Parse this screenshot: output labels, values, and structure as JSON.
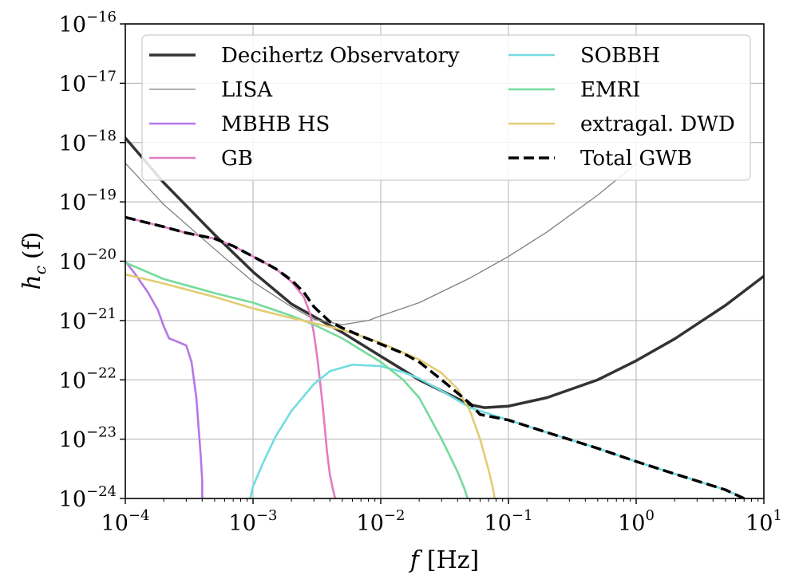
{
  "chart_data": {
    "type": "line",
    "title": "",
    "xlabel": {
      "var": "f",
      "unit": "[Hz]"
    },
    "ylabel": {
      "var": "h",
      "sub": "c",
      "arg": "(f)"
    },
    "xscale": "log",
    "yscale": "log",
    "xlim": [
      0.0001,
      10
    ],
    "ylim": [
      1e-24,
      1e-16
    ],
    "x_ticks": [
      {
        "base": "10",
        "exp": "−4",
        "value": 0.0001
      },
      {
        "base": "10",
        "exp": "−3",
        "value": 0.001
      },
      {
        "base": "10",
        "exp": "−2",
        "value": 0.01
      },
      {
        "base": "10",
        "exp": "−1",
        "value": 0.1
      },
      {
        "base": "10",
        "exp": "0",
        "value": 1
      },
      {
        "base": "10",
        "exp": "1",
        "value": 10
      }
    ],
    "y_ticks": [
      {
        "base": "10",
        "exp": "−24",
        "value": 1e-24
      },
      {
        "base": "10",
        "exp": "−23",
        "value": 1e-23
      },
      {
        "base": "10",
        "exp": "−22",
        "value": 1e-22
      },
      {
        "base": "10",
        "exp": "−21",
        "value": 1e-21
      },
      {
        "base": "10",
        "exp": "−20",
        "value": 1e-20
      },
      {
        "base": "10",
        "exp": "−19",
        "value": 1e-19
      },
      {
        "base": "10",
        "exp": "−18",
        "value": 1e-18
      },
      {
        "base": "10",
        "exp": "−17",
        "value": 1e-17
      },
      {
        "base": "10",
        "exp": "−16",
        "value": 1e-16
      }
    ],
    "grid": true,
    "legend": {
      "placement": "top",
      "columns": 2
    },
    "series": [
      {
        "name": "Decihertz Observatory",
        "color": "#333333",
        "style": "solid",
        "weight": "thick",
        "x": [
          0.0001,
          0.0002,
          0.0005,
          0.001,
          0.002,
          0.005,
          0.01,
          0.02,
          0.05,
          0.065,
          0.1,
          0.2,
          0.5,
          1,
          2,
          5,
          10
        ],
        "y": [
          1.2e-18,
          2.1e-19,
          2.8e-20,
          6.6e-21,
          1.9e-21,
          6.3e-22,
          2.5e-22,
          1e-22,
          3.8e-23,
          3.4e-23,
          3.6e-23,
          5e-23,
          1e-22,
          2.1e-22,
          4.9e-22,
          1.8e-21,
          5.6e-21
        ]
      },
      {
        "name": "LISA",
        "color": "#808080",
        "style": "solid",
        "weight": "thin",
        "x": [
          0.0001,
          0.0002,
          0.0005,
          0.001,
          0.002,
          0.003,
          0.005,
          0.008,
          0.01,
          0.02,
          0.05,
          0.1,
          0.2,
          0.5,
          1
        ],
        "y": [
          4.5e-19,
          9e-20,
          1.6e-20,
          4.5e-21,
          1.7e-21,
          1.05e-21,
          8.5e-22,
          1e-21,
          1.2e-21,
          2e-21,
          5.2e-21,
          1.2e-20,
          3.1e-20,
          1.3e-19,
          4.4e-19
        ]
      },
      {
        "name": "MBHB HS",
        "color": "#b577e6",
        "style": "solid",
        "weight": "normal",
        "x": [
          0.0001,
          0.00012,
          0.00015,
          0.00018,
          0.0002,
          0.00022,
          0.00025,
          0.0003,
          0.00033,
          0.00036,
          0.00039,
          0.0004,
          0.0004
        ],
        "y": [
          1e-20,
          6e-21,
          3e-21,
          1.5e-21,
          8e-22,
          5e-22,
          4.5e-22,
          3.8e-22,
          2e-22,
          5e-23,
          5e-24,
          2e-24,
          1e-24
        ]
      },
      {
        "name": "GB",
        "color": "#e37bc1",
        "style": "solid",
        "weight": "normal",
        "x": [
          0.0001,
          0.0002,
          0.0003,
          0.0005,
          0.0007,
          0.001,
          0.0015,
          0.002,
          0.0025,
          0.0028,
          0.003,
          0.0032,
          0.0035,
          0.0038,
          0.004,
          0.0042,
          0.0044
        ],
        "y": [
          5.5e-20,
          3.8e-20,
          3e-20,
          2.4e-20,
          1.8e-20,
          1.2e-20,
          7.5e-21,
          4.5e-21,
          2.5e-21,
          1.3e-21,
          6e-22,
          2.2e-22,
          4e-23,
          6e-24,
          2.5e-24,
          1.5e-24,
          1e-24
        ]
      },
      {
        "name": "SOBBH",
        "color": "#71dce0",
        "style": "solid",
        "weight": "normal",
        "x": [
          0.00095,
          0.001,
          0.0012,
          0.0015,
          0.002,
          0.003,
          0.004,
          0.006,
          0.01,
          0.015,
          0.02,
          0.03,
          0.05,
          0.1,
          0.2,
          0.5,
          1,
          2,
          5,
          7
        ],
        "y": [
          1e-24,
          1.6e-24,
          4e-24,
          1.1e-23,
          3e-23,
          8.5e-23,
          1.4e-22,
          1.8e-22,
          1.7e-22,
          1.35e-22,
          1.05e-22,
          6.5e-23,
          3.4e-23,
          2.1e-23,
          1.3e-23,
          7e-24,
          4.2e-24,
          2.6e-24,
          1.4e-24,
          1e-24
        ]
      },
      {
        "name": "EMRI",
        "color": "#74db9a",
        "style": "solid",
        "weight": "normal",
        "x": [
          0.0001,
          0.0002,
          0.0005,
          0.001,
          0.002,
          0.003,
          0.005,
          0.01,
          0.015,
          0.02,
          0.03,
          0.04,
          0.045,
          0.048
        ],
        "y": [
          9.5e-21,
          5e-21,
          2.9e-21,
          2e-21,
          1.2e-21,
          8.5e-22,
          5e-22,
          2e-22,
          1e-22,
          5e-23,
          1e-23,
          2.8e-24,
          1.5e-24,
          1e-24
        ]
      },
      {
        "name": "extragal. DWD",
        "color": "#e3cc74",
        "style": "solid",
        "weight": "normal",
        "x": [
          0.0001,
          0.0002,
          0.0005,
          0.001,
          0.002,
          0.005,
          0.01,
          0.02,
          0.03,
          0.04,
          0.05,
          0.06,
          0.07,
          0.075,
          0.078
        ],
        "y": [
          6e-21,
          4.2e-21,
          2.5e-21,
          1.6e-21,
          1.1e-21,
          7e-22,
          4.2e-22,
          2.2e-22,
          1.3e-22,
          7e-23,
          3e-23,
          1e-23,
          3e-24,
          1.6e-24,
          1e-24
        ]
      },
      {
        "name": "Total GWB",
        "color": "#000000",
        "style": "dashed",
        "weight": "thick",
        "x": [
          0.0001,
          0.0002,
          0.0003,
          0.0005,
          0.0007,
          0.001,
          0.0015,
          0.002,
          0.0025,
          0.003,
          0.004,
          0.005,
          0.007,
          0.01,
          0.015,
          0.02,
          0.03,
          0.05,
          0.06,
          0.1,
          0.2,
          0.5,
          1,
          2,
          5,
          7
        ],
        "y": [
          5.5e-20,
          3.8e-20,
          3e-20,
          2.4e-20,
          1.8e-20,
          1.2e-20,
          7.5e-21,
          4.8e-21,
          3e-21,
          1.7e-21,
          9.5e-22,
          7.5e-22,
          5.5e-22,
          4e-22,
          2.8e-22,
          2e-22,
          1e-22,
          4e-23,
          2.6e-23,
          2.1e-23,
          1.3e-23,
          7e-24,
          4.2e-24,
          2.6e-24,
          1.4e-24,
          1e-24
        ]
      }
    ]
  }
}
